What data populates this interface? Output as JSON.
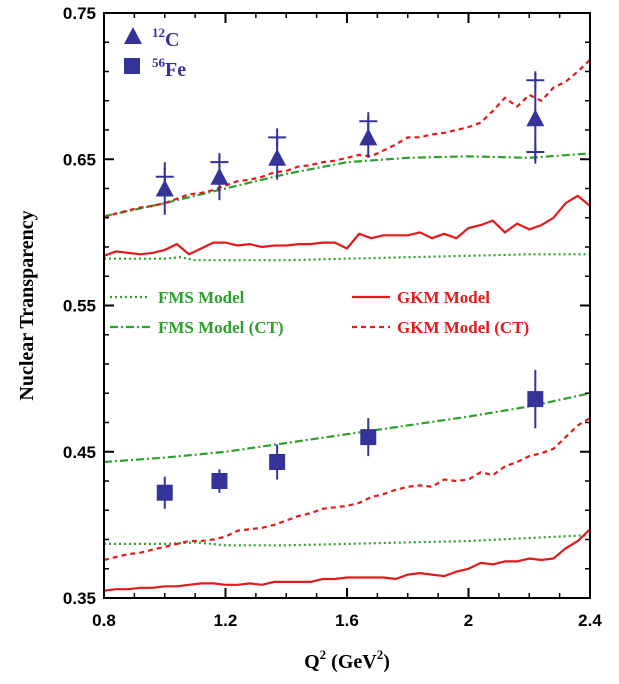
{
  "chart_data": {
    "type": "line",
    "xlabel_main": "Q",
    "xlabel_sup": "2",
    "xlabel_rest": " (GeV",
    "xlabel_sup2": "2",
    "xlabel_close": ")",
    "ylabel": "Nuclear Transparency",
    "xlim": [
      0.8,
      2.4
    ],
    "ylim": [
      0.35,
      0.75
    ],
    "xticks": [
      0.8,
      1.2,
      1.6,
      2.0,
      2.4
    ],
    "xtick_labels": [
      "0.8",
      "1.2",
      "1.6",
      "2",
      "2.4"
    ],
    "yticks": [
      0.35,
      0.45,
      0.55,
      0.65,
      0.75
    ],
    "ytick_labels": [
      "0.35",
      "0.45",
      "0.55",
      "0.65",
      "0.75"
    ],
    "colors": {
      "data": "#33339a",
      "fms": "#2ca02c",
      "gkm": "#e31a1c"
    },
    "legend": [
      {
        "label": "FMS Model",
        "style": "fms-dotted"
      },
      {
        "label": "GKM Model",
        "style": "gkm-solid"
      },
      {
        "label": "FMS Model (CT)",
        "style": "fms-dashdot"
      },
      {
        "label": "GKM Model (CT)",
        "style": "gkm-dashed"
      }
    ],
    "marker_legend": [
      {
        "sup": "12",
        "label": "C",
        "marker": "triangle"
      },
      {
        "sup": "56",
        "label": "Fe",
        "marker": "square"
      }
    ],
    "data_series": [
      {
        "marker": "triangle",
        "points": [
          {
            "x": 1.0,
            "y": 0.63,
            "err": 0.018
          },
          {
            "x": 1.18,
            "y": 0.638,
            "err": 0.016
          },
          {
            "x": 1.37,
            "y": 0.651,
            "err": 0.015
          },
          {
            "x": 1.67,
            "y": 0.665,
            "err": 0.014
          },
          {
            "x": 2.22,
            "y": 0.678,
            "err": 0.031
          }
        ],
        "plus_points": [
          {
            "x": 1.0,
            "y": 0.638
          },
          {
            "x": 1.18,
            "y": 0.648
          },
          {
            "x": 1.37,
            "y": 0.665
          },
          {
            "x": 1.67,
            "y": 0.676
          },
          {
            "x": 2.22,
            "y": 0.704
          },
          {
            "x": 2.22,
            "y": 0.655
          }
        ]
      },
      {
        "marker": "square",
        "points": [
          {
            "x": 1.0,
            "y": 0.422,
            "err": 0.011
          },
          {
            "x": 1.18,
            "y": 0.43,
            "err": 0.008
          },
          {
            "x": 1.37,
            "y": 0.443,
            "err": 0.012
          },
          {
            "x": 1.67,
            "y": 0.46,
            "err": 0.013
          },
          {
            "x": 2.22,
            "y": 0.486,
            "err": 0.02
          }
        ]
      }
    ],
    "model_series": [
      {
        "group": "C",
        "style": "fms-dotted",
        "x": [
          0.8,
          0.9,
          1.0,
          1.05,
          1.1,
          1.2,
          1.4,
          1.6,
          1.8,
          2.0,
          2.2,
          2.4
        ],
        "y": [
          0.582,
          0.582,
          0.582,
          0.583,
          0.581,
          0.581,
          0.581,
          0.582,
          0.583,
          0.584,
          0.585,
          0.585
        ]
      },
      {
        "group": "C",
        "style": "fms-dashdot",
        "x": [
          0.8,
          1.0,
          1.2,
          1.4,
          1.6,
          1.8,
          2.0,
          2.2,
          2.4
        ],
        "y": [
          0.611,
          0.62,
          0.63,
          0.64,
          0.648,
          0.651,
          0.652,
          0.651,
          0.654
        ]
      },
      {
        "group": "C",
        "style": "gkm-solid",
        "x": [
          0.8,
          0.84,
          0.88,
          0.92,
          0.96,
          1.0,
          1.04,
          1.08,
          1.12,
          1.16,
          1.2,
          1.24,
          1.28,
          1.32,
          1.36,
          1.4,
          1.44,
          1.48,
          1.52,
          1.56,
          1.6,
          1.64,
          1.68,
          1.72,
          1.76,
          1.8,
          1.84,
          1.88,
          1.92,
          1.96,
          2.0,
          2.04,
          2.08,
          2.12,
          2.16,
          2.2,
          2.24,
          2.28,
          2.32,
          2.36,
          2.4
        ],
        "y": [
          0.584,
          0.587,
          0.586,
          0.585,
          0.586,
          0.588,
          0.592,
          0.585,
          0.589,
          0.593,
          0.593,
          0.591,
          0.592,
          0.59,
          0.591,
          0.591,
          0.592,
          0.592,
          0.593,
          0.593,
          0.589,
          0.599,
          0.596,
          0.598,
          0.598,
          0.598,
          0.6,
          0.596,
          0.599,
          0.596,
          0.603,
          0.605,
          0.608,
          0.6,
          0.606,
          0.602,
          0.605,
          0.61,
          0.62,
          0.625,
          0.618
        ]
      },
      {
        "group": "C",
        "style": "gkm-dashed",
        "x": [
          0.8,
          0.84,
          0.88,
          0.92,
          0.96,
          1.0,
          1.04,
          1.08,
          1.12,
          1.16,
          1.2,
          1.24,
          1.28,
          1.32,
          1.36,
          1.4,
          1.44,
          1.48,
          1.52,
          1.56,
          1.6,
          1.64,
          1.68,
          1.72,
          1.76,
          1.8,
          1.84,
          1.88,
          1.92,
          1.96,
          2.0,
          2.04,
          2.08,
          2.12,
          2.16,
          2.2,
          2.24,
          2.28,
          2.32,
          2.36,
          2.4
        ],
        "y": [
          0.61,
          0.613,
          0.615,
          0.617,
          0.618,
          0.62,
          0.623,
          0.626,
          0.627,
          0.629,
          0.632,
          0.635,
          0.636,
          0.638,
          0.641,
          0.642,
          0.645,
          0.646,
          0.648,
          0.649,
          0.651,
          0.653,
          0.652,
          0.656,
          0.66,
          0.665,
          0.665,
          0.667,
          0.668,
          0.67,
          0.672,
          0.675,
          0.683,
          0.692,
          0.686,
          0.694,
          0.69,
          0.699,
          0.703,
          0.71,
          0.718
        ]
      },
      {
        "group": "Fe",
        "style": "fms-dotted",
        "x": [
          0.8,
          1.0,
          1.1,
          1.2,
          1.4,
          1.6,
          1.8,
          2.0,
          2.2,
          2.4
        ],
        "y": [
          0.387,
          0.387,
          0.388,
          0.386,
          0.386,
          0.387,
          0.388,
          0.389,
          0.391,
          0.393
        ]
      },
      {
        "group": "Fe",
        "style": "fms-dashdot",
        "x": [
          0.8,
          1.0,
          1.2,
          1.4,
          1.6,
          1.8,
          2.0,
          2.2,
          2.4
        ],
        "y": [
          0.443,
          0.446,
          0.45,
          0.456,
          0.462,
          0.468,
          0.474,
          0.481,
          0.49
        ]
      },
      {
        "group": "Fe",
        "style": "gkm-solid",
        "x": [
          0.8,
          0.84,
          0.88,
          0.92,
          0.96,
          1.0,
          1.04,
          1.08,
          1.12,
          1.16,
          1.2,
          1.24,
          1.28,
          1.32,
          1.36,
          1.4,
          1.44,
          1.48,
          1.52,
          1.56,
          1.6,
          1.64,
          1.68,
          1.72,
          1.76,
          1.8,
          1.84,
          1.88,
          1.92,
          1.96,
          2.0,
          2.04,
          2.08,
          2.12,
          2.16,
          2.2,
          2.24,
          2.28,
          2.32,
          2.36,
          2.4
        ],
        "y": [
          0.355,
          0.356,
          0.356,
          0.357,
          0.357,
          0.358,
          0.358,
          0.359,
          0.36,
          0.36,
          0.359,
          0.359,
          0.36,
          0.359,
          0.361,
          0.361,
          0.361,
          0.361,
          0.363,
          0.363,
          0.364,
          0.364,
          0.364,
          0.364,
          0.363,
          0.366,
          0.367,
          0.366,
          0.365,
          0.368,
          0.37,
          0.374,
          0.373,
          0.375,
          0.375,
          0.377,
          0.376,
          0.377,
          0.384,
          0.389,
          0.397
        ]
      },
      {
        "group": "Fe",
        "style": "gkm-dashed",
        "x": [
          0.8,
          0.84,
          0.88,
          0.92,
          0.96,
          1.0,
          1.04,
          1.08,
          1.12,
          1.16,
          1.2,
          1.24,
          1.28,
          1.32,
          1.36,
          1.4,
          1.44,
          1.48,
          1.52,
          1.56,
          1.6,
          1.64,
          1.68,
          1.72,
          1.76,
          1.8,
          1.84,
          1.88,
          1.92,
          1.96,
          2.0,
          2.04,
          2.08,
          2.12,
          2.16,
          2.2,
          2.24,
          2.28,
          2.32,
          2.36,
          2.4
        ],
        "y": [
          0.376,
          0.378,
          0.38,
          0.381,
          0.383,
          0.385,
          0.387,
          0.389,
          0.389,
          0.39,
          0.392,
          0.396,
          0.397,
          0.398,
          0.4,
          0.403,
          0.406,
          0.408,
          0.411,
          0.412,
          0.413,
          0.415,
          0.419,
          0.421,
          0.424,
          0.426,
          0.427,
          0.426,
          0.431,
          0.43,
          0.431,
          0.436,
          0.434,
          0.44,
          0.443,
          0.447,
          0.449,
          0.452,
          0.46,
          0.468,
          0.473
        ]
      }
    ]
  }
}
